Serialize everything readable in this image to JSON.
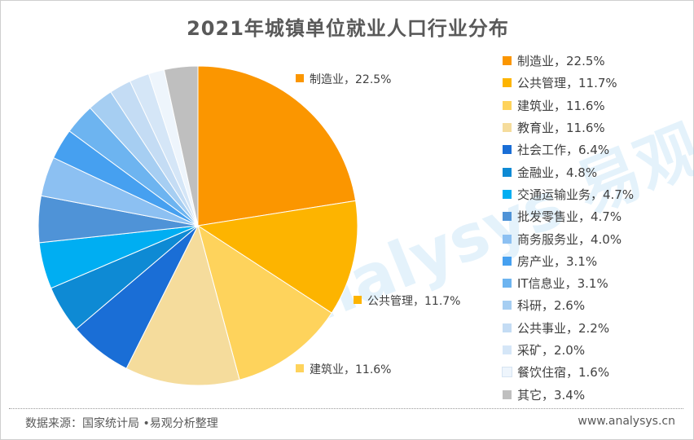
{
  "watermark": "analysys 易观分析",
  "footer": {
    "source": "数据来源：国家统计局 •易观分析整理",
    "site": "www.analysys.cn"
  },
  "chart_data": {
    "type": "pie",
    "title": "2021年城镇单位就业人口行业分布",
    "start_angle_deg": 0,
    "direction": "clockwise",
    "legend_position": "right",
    "slices": [
      {
        "label": "制造业",
        "value": 22.5,
        "display": "22.5%",
        "color": "#fb9600"
      },
      {
        "label": "公共管理",
        "value": 11.7,
        "display": "11.7%",
        "color": "#fdb400"
      },
      {
        "label": "建筑业",
        "value": 11.6,
        "display": "11.6%",
        "color": "#fed35c"
      },
      {
        "label": "教育业",
        "value": 11.6,
        "display": "11.6%",
        "color": "#f5dc9c"
      },
      {
        "label": "社会工作",
        "value": 6.4,
        "display": "6.4%",
        "color": "#1a6ed6"
      },
      {
        "label": "金融业",
        "value": 4.8,
        "display": "4.8%",
        "color": "#0e8ad4"
      },
      {
        "label": "交通运输业务",
        "value": 4.7,
        "display": "4.7%",
        "color": "#00aef2"
      },
      {
        "label": "批发零售业",
        "value": 4.7,
        "display": "4.7%",
        "color": "#4f93d7"
      },
      {
        "label": "商务服务业",
        "value": 4.0,
        "display": "4.0%",
        "color": "#8cc0f2"
      },
      {
        "label": "房产业",
        "value": 3.1,
        "display": "3.1%",
        "color": "#46a0f0"
      },
      {
        "label": "IT信息业",
        "value": 3.1,
        "display": "3.1%",
        "color": "#6db4f0"
      },
      {
        "label": "科研",
        "value": 2.6,
        "display": "2.6%",
        "color": "#a6cef2"
      },
      {
        "label": "公共事业",
        "value": 2.2,
        "display": "2.2%",
        "color": "#c4dcf4"
      },
      {
        "label": "采矿",
        "value": 2.0,
        "display": "2.0%",
        "color": "#d5e6f7"
      },
      {
        "label": "餐饮住宿",
        "value": 1.6,
        "display": "1.6%",
        "color": "#eef5fc"
      },
      {
        "label": "其它",
        "value": 3.4,
        "display": "3.4%",
        "color": "#bfbfbf"
      }
    ],
    "labeled_slices": [
      "制造业",
      "公共管理",
      "建筑业"
    ]
  }
}
